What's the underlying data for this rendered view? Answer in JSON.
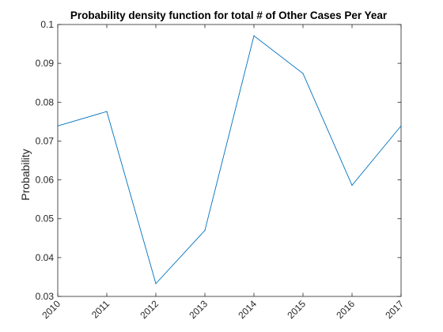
{
  "chart_data": {
    "type": "line",
    "title": "Probability density function for total # of Other Cases Per Year",
    "xlabel": "",
    "ylabel": "Probability",
    "categories": [
      "2010",
      "2011",
      "2012",
      "2013",
      "2014",
      "2015",
      "2016",
      "2017"
    ],
    "x": [
      2010,
      2011,
      2012,
      2013,
      2014,
      2015,
      2016,
      2017
    ],
    "series": [
      {
        "values": [
          0.0739,
          0.0776,
          0.0333,
          0.047,
          0.0971,
          0.0874,
          0.0586,
          0.0739
        ],
        "color": "#0072bd"
      }
    ],
    "xlim": [
      2010,
      2017
    ],
    "ylim": [
      0.03,
      0.1
    ],
    "yticks": [
      0.03,
      0.04,
      0.05,
      0.06,
      0.07,
      0.08,
      0.09,
      0.1
    ],
    "yticklabels": [
      "0.03",
      "0.04",
      "0.05",
      "0.06",
      "0.07",
      "0.08",
      "0.09",
      "0.1"
    ],
    "grid": false,
    "box": true
  }
}
